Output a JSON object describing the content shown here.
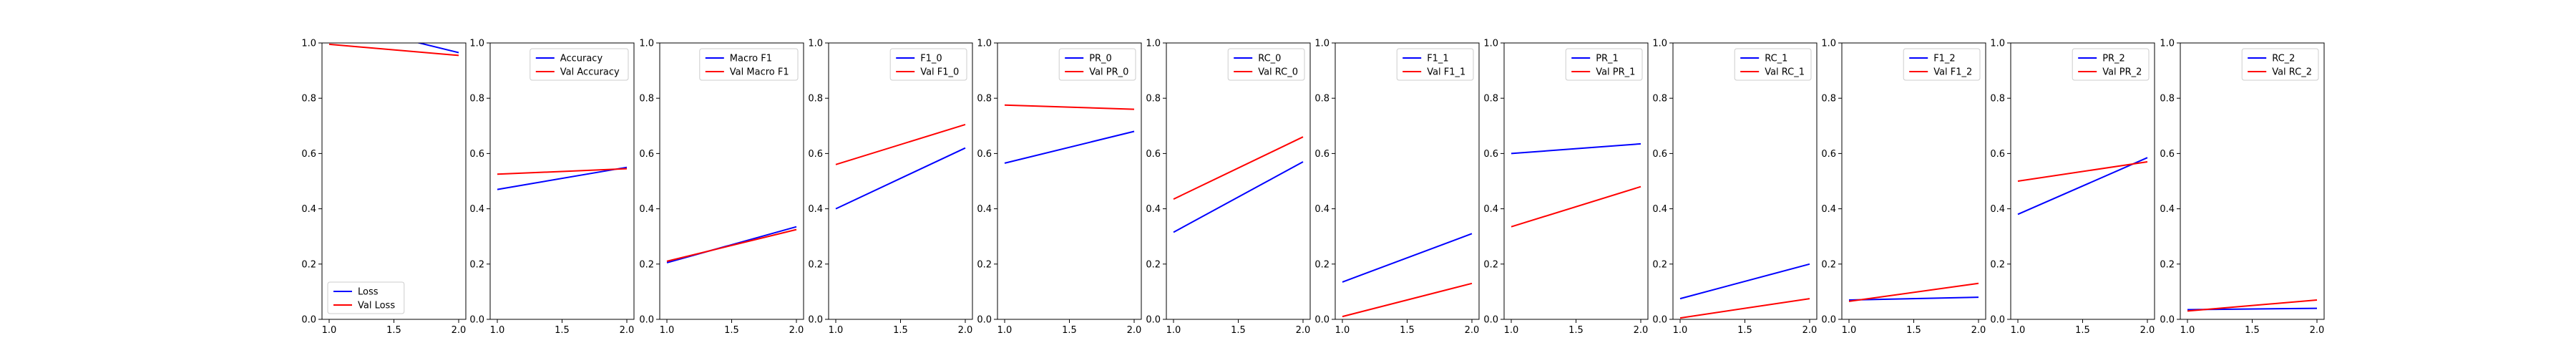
{
  "chart_data": [
    {
      "type": "line",
      "x": [
        1.0,
        2.0
      ],
      "xticks": [
        1.0,
        1.5,
        2.0
      ],
      "ylim": [
        0.0,
        1.0
      ],
      "yticks": [
        0.0,
        0.2,
        0.4,
        0.6,
        0.8,
        1.0
      ],
      "legend": "lower-left",
      "series": [
        {
          "name": "Loss",
          "color": "#0000ff",
          "values": [
            1.08,
            0.965
          ]
        },
        {
          "name": "Val Loss",
          "color": "#ff0000",
          "values": [
            0.995,
            0.955
          ]
        }
      ]
    },
    {
      "type": "line",
      "x": [
        1.0,
        2.0
      ],
      "xticks": [
        1.0,
        1.5,
        2.0
      ],
      "ylim": [
        0.0,
        1.0
      ],
      "yticks": [
        0.0,
        0.2,
        0.4,
        0.6,
        0.8,
        1.0
      ],
      "legend": "upper-right",
      "series": [
        {
          "name": "Accuracy",
          "color": "#0000ff",
          "values": [
            0.47,
            0.55
          ]
        },
        {
          "name": "Val Accuracy",
          "color": "#ff0000",
          "values": [
            0.525,
            0.545
          ]
        }
      ]
    },
    {
      "type": "line",
      "x": [
        1.0,
        2.0
      ],
      "xticks": [
        1.0,
        1.5,
        2.0
      ],
      "ylim": [
        0.0,
        1.0
      ],
      "yticks": [
        0.0,
        0.2,
        0.4,
        0.6,
        0.8,
        1.0
      ],
      "legend": "upper-right",
      "series": [
        {
          "name": "Macro F1",
          "color": "#0000ff",
          "values": [
            0.205,
            0.335
          ]
        },
        {
          "name": "Val Macro F1",
          "color": "#ff0000",
          "values": [
            0.21,
            0.325
          ]
        }
      ]
    },
    {
      "type": "line",
      "x": [
        1.0,
        2.0
      ],
      "xticks": [
        1.0,
        1.5,
        2.0
      ],
      "ylim": [
        0.0,
        1.0
      ],
      "yticks": [
        0.0,
        0.2,
        0.4,
        0.6,
        0.8,
        1.0
      ],
      "legend": "upper-right",
      "series": [
        {
          "name": "F1_0",
          "color": "#0000ff",
          "values": [
            0.4,
            0.62
          ]
        },
        {
          "name": "Val F1_0",
          "color": "#ff0000",
          "values": [
            0.56,
            0.705
          ]
        }
      ]
    },
    {
      "type": "line",
      "x": [
        1.0,
        2.0
      ],
      "xticks": [
        1.0,
        1.5,
        2.0
      ],
      "ylim": [
        0.0,
        1.0
      ],
      "yticks": [
        0.0,
        0.2,
        0.4,
        0.6,
        0.8,
        1.0
      ],
      "legend": "upper-right",
      "series": [
        {
          "name": "PR_0",
          "color": "#0000ff",
          "values": [
            0.565,
            0.68
          ]
        },
        {
          "name": "Val PR_0",
          "color": "#ff0000",
          "values": [
            0.775,
            0.76
          ]
        }
      ]
    },
    {
      "type": "line",
      "x": [
        1.0,
        2.0
      ],
      "xticks": [
        1.0,
        1.5,
        2.0
      ],
      "ylim": [
        0.0,
        1.0
      ],
      "yticks": [
        0.0,
        0.2,
        0.4,
        0.6,
        0.8,
        1.0
      ],
      "legend": "upper-right",
      "series": [
        {
          "name": "RC_0",
          "color": "#0000ff",
          "values": [
            0.315,
            0.57
          ]
        },
        {
          "name": "Val RC_0",
          "color": "#ff0000",
          "values": [
            0.435,
            0.66
          ]
        }
      ]
    },
    {
      "type": "line",
      "x": [
        1.0,
        2.0
      ],
      "xticks": [
        1.0,
        1.5,
        2.0
      ],
      "ylim": [
        0.0,
        1.0
      ],
      "yticks": [
        0.0,
        0.2,
        0.4,
        0.6,
        0.8,
        1.0
      ],
      "legend": "upper-right",
      "series": [
        {
          "name": "F1_1",
          "color": "#0000ff",
          "values": [
            0.135,
            0.31
          ]
        },
        {
          "name": "Val F1_1",
          "color": "#ff0000",
          "values": [
            0.01,
            0.13
          ]
        }
      ]
    },
    {
      "type": "line",
      "x": [
        1.0,
        2.0
      ],
      "xticks": [
        1.0,
        1.5,
        2.0
      ],
      "ylim": [
        0.0,
        1.0
      ],
      "yticks": [
        0.0,
        0.2,
        0.4,
        0.6,
        0.8,
        1.0
      ],
      "legend": "upper-right",
      "series": [
        {
          "name": "PR_1",
          "color": "#0000ff",
          "values": [
            0.6,
            0.635
          ]
        },
        {
          "name": "Val PR_1",
          "color": "#ff0000",
          "values": [
            0.335,
            0.48
          ]
        }
      ]
    },
    {
      "type": "line",
      "x": [
        1.0,
        2.0
      ],
      "xticks": [
        1.0,
        1.5,
        2.0
      ],
      "ylim": [
        0.0,
        1.0
      ],
      "yticks": [
        0.0,
        0.2,
        0.4,
        0.6,
        0.8,
        1.0
      ],
      "legend": "upper-right",
      "series": [
        {
          "name": "RC_1",
          "color": "#0000ff",
          "values": [
            0.075,
            0.2
          ]
        },
        {
          "name": "Val RC_1",
          "color": "#ff0000",
          "values": [
            0.005,
            0.075
          ]
        }
      ]
    },
    {
      "type": "line",
      "x": [
        1.0,
        2.0
      ],
      "xticks": [
        1.0,
        1.5,
        2.0
      ],
      "ylim": [
        0.0,
        1.0
      ],
      "yticks": [
        0.0,
        0.2,
        0.4,
        0.6,
        0.8,
        1.0
      ],
      "legend": "upper-right",
      "series": [
        {
          "name": "F1_2",
          "color": "#0000ff",
          "values": [
            0.07,
            0.08
          ]
        },
        {
          "name": "Val F1_2",
          "color": "#ff0000",
          "values": [
            0.065,
            0.13
          ]
        }
      ]
    },
    {
      "type": "line",
      "x": [
        1.0,
        2.0
      ],
      "xticks": [
        1.0,
        1.5,
        2.0
      ],
      "ylim": [
        0.0,
        1.0
      ],
      "yticks": [
        0.0,
        0.2,
        0.4,
        0.6,
        0.8,
        1.0
      ],
      "legend": "upper-right",
      "series": [
        {
          "name": "PR_2",
          "color": "#0000ff",
          "values": [
            0.38,
            0.585
          ]
        },
        {
          "name": "Val PR_2",
          "color": "#ff0000",
          "values": [
            0.5,
            0.57
          ]
        }
      ]
    },
    {
      "type": "line",
      "x": [
        1.0,
        2.0
      ],
      "xticks": [
        1.0,
        1.5,
        2.0
      ],
      "ylim": [
        0.0,
        1.0
      ],
      "yticks": [
        0.0,
        0.2,
        0.4,
        0.6,
        0.8,
        1.0
      ],
      "legend": "upper-right",
      "series": [
        {
          "name": "RC_2",
          "color": "#0000ff",
          "values": [
            0.035,
            0.04
          ]
        },
        {
          "name": "Val RC_2",
          "color": "#ff0000",
          "values": [
            0.03,
            0.07
          ]
        }
      ]
    }
  ]
}
